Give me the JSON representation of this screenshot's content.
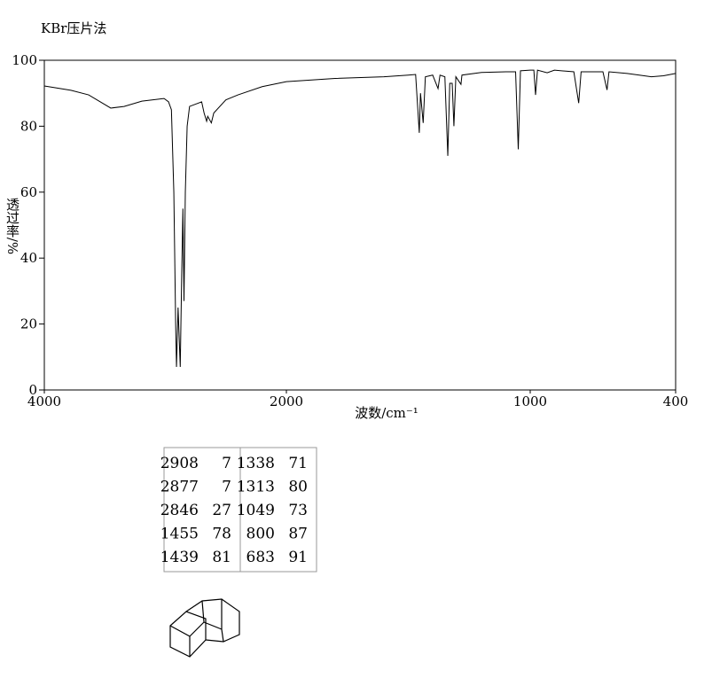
{
  "chart_data": {
    "type": "line",
    "title": "KBr压片法",
    "x_label": "波数/cm⁻¹",
    "y_label": "透过率/%",
    "x": [
      4000,
      3780,
      3634,
      3451,
      3341,
      3194,
      3011,
      2974,
      2950,
      2930,
      2915,
      2908,
      2895,
      2885,
      2877,
      2865,
      2855,
      2846,
      2835,
      2820,
      2800,
      2700,
      2680,
      2659,
      2650,
      2620,
      2600,
      2500,
      2400,
      2200,
      2000,
      1800,
      1600,
      1500,
      1470,
      1455,
      1450,
      1439,
      1430,
      1400,
      1378,
      1370,
      1350,
      1338,
      1330,
      1320,
      1313,
      1305,
      1284,
      1280,
      1200,
      1100,
      1060,
      1049,
      1040,
      1000,
      985,
      978,
      970,
      930,
      900,
      820,
      800,
      790,
      700,
      683,
      675,
      600,
      500,
      450,
      400
    ],
    "values": [
      92.2,
      90.9,
      89.5,
      85.5,
      86,
      87.6,
      88.4,
      87.4,
      85,
      60,
      20,
      7,
      25,
      15,
      7,
      35,
      55,
      27,
      60,
      80,
      86,
      87.4,
      84,
      81.5,
      83,
      81,
      84,
      88,
      89.5,
      92,
      93.5,
      94.5,
      95,
      95.5,
      95.7,
      78,
      90,
      81,
      95,
      95.5,
      91.4,
      95.5,
      95,
      71,
      93,
      93,
      80,
      95,
      92.7,
      95.5,
      96.3,
      96.5,
      96.5,
      73,
      96.8,
      97,
      97,
      89.5,
      97,
      96.2,
      97,
      96.5,
      87,
      96.5,
      96.5,
      91,
      96.5,
      96,
      95,
      95.3,
      96
    ],
    "color": "#000000",
    "xlim": [
      4000,
      400
    ],
    "xticks": [
      4000,
      2000,
      1000,
      400
    ],
    "ylim": [
      0,
      100
    ],
    "yticks": [
      0,
      20,
      40,
      60,
      80,
      100
    ]
  },
  "peak_table": {
    "rows": [
      [
        2908,
        7,
        1338,
        71
      ],
      [
        2877,
        7,
        1313,
        80
      ],
      [
        2846,
        27,
        1049,
        73
      ],
      [
        1455,
        78,
        800,
        87
      ],
      [
        1439,
        81,
        683,
        91
      ]
    ]
  }
}
